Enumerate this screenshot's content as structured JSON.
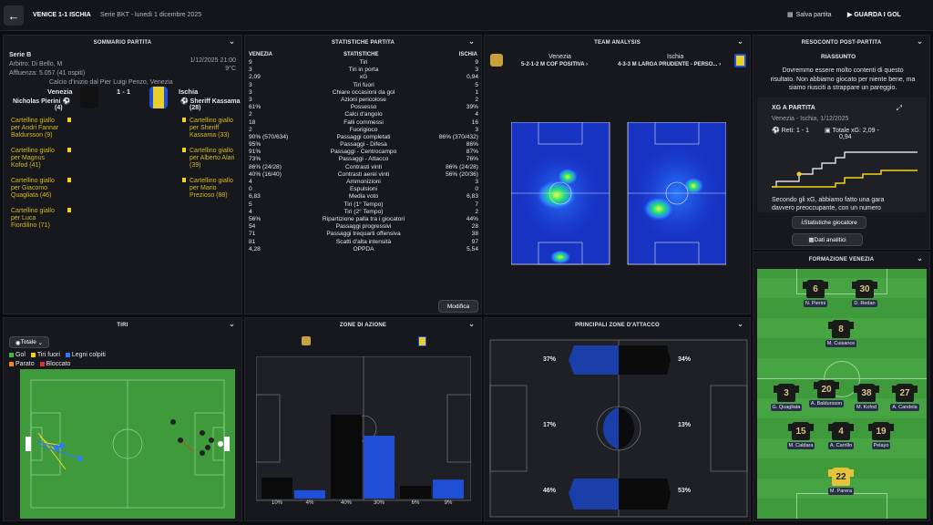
{
  "header": {
    "title": "VENICE 1-1 ISCHIA",
    "subtitle": "Serie BKT - lunedì 1 dicembre 2025",
    "save": "Salva partita",
    "watch": "GUARDA I GOL"
  },
  "summary": {
    "title": "SOMMARIO PARTITA",
    "league": "Serie B",
    "date": "1/12/2025 21:00",
    "referee": "Arbitro: Di Bello, M",
    "temp": "9°C",
    "attendance": "Affluenza: 5.057 (41 ospiti)",
    "kickoff": "Calcio d'inizio dal Pier Luigi Penzo, Venezia",
    "home": "Venezia",
    "away": "Ischia",
    "score": "1 - 1",
    "home_scorer": "Nicholas Pierini",
    "home_scorer_min": "(4)",
    "away_scorer": "Sheriff Kassama",
    "away_scorer_min": "(28)",
    "home_cards": [
      {
        "a": "Cartellino giallo",
        "b": "per Andri Fannar",
        "c": "Baldursson (9)"
      },
      {
        "a": "Cartellino giallo",
        "b": "per Magnus",
        "c": "Kofod (41)"
      },
      {
        "a": "Cartellino giallo",
        "b": "per Giacomo",
        "c": "Quagliata (46)"
      },
      {
        "a": "Cartellino giallo",
        "b": "per Luca",
        "c": "Fiordilino (71)"
      }
    ],
    "away_cards": [
      {
        "a": "Cartellino giallo",
        "b": "per Sheriff",
        "c": "Kassama (33)"
      },
      {
        "a": "Cartellino giallo",
        "b": "per Alberto Alari",
        "c": "(39)"
      },
      {
        "a": "Cartellino giallo",
        "b": "per Mario",
        "c": "Prezioso (88)"
      }
    ]
  },
  "stats": {
    "title": "STATISTICHE PARTITA",
    "h_home": "VENEZIA",
    "h_mid": "STATISTICHE",
    "h_away": "ISCHIA",
    "edit": "Modifica",
    "rows": [
      [
        "9",
        "Tiri",
        "9"
      ],
      [
        "3",
        "Tiri in porta",
        "3"
      ],
      [
        "2,09",
        "xG",
        "0,94"
      ],
      [
        "3",
        "Tiri fuori",
        "5"
      ],
      [
        "3",
        "Chiare occasioni da gol",
        "1"
      ],
      [
        "3",
        "Azioni pericolose",
        "2"
      ],
      [
        "61%",
        "Possesso",
        "39%"
      ],
      [
        "2",
        "Calci d'angolo",
        "4"
      ],
      [
        "18",
        "Falli commessi",
        "16"
      ],
      [
        "2",
        "Fuorigioco",
        "3"
      ],
      [
        "90% (570/634)",
        "Passaggi completati",
        "86% (370/432)"
      ],
      [
        "95%",
        "Passaggi - Difesa",
        "86%"
      ],
      [
        "91%",
        "Passaggi - Centrocampo",
        "87%"
      ],
      [
        "73%",
        "Passaggi - Attacco",
        "76%"
      ],
      [
        "86% (24/28)",
        "Contrasti vinti",
        "86% (24/28)"
      ],
      [
        "40% (16/40)",
        "Contrasti aerei vinti",
        "56% (20/36)"
      ],
      [
        "4",
        "Ammonizioni",
        "3"
      ],
      [
        "0",
        "Espulsioni",
        "0"
      ],
      [
        "6,83",
        "Media voto",
        "6,83"
      ],
      [
        "5",
        "Tiri (1° Tempo)",
        "7"
      ],
      [
        "4",
        "Tiri (2° Tempo)",
        "2"
      ],
      [
        "56%",
        "Ripartizione palla tra i giocatori",
        "44%"
      ],
      [
        "54",
        "Passaggi progressivi",
        "28"
      ],
      [
        "71",
        "Passaggi trequarti offensiva",
        "38"
      ],
      [
        "81",
        "Scatti d'alta intensità",
        "97"
      ],
      [
        "4,28",
        "OPPDA",
        "5,54"
      ]
    ]
  },
  "team": {
    "title": "TEAM ANALYSIS",
    "home": "Venezia",
    "away": "Ischia",
    "home_form": "5-2-1-2 M COF POSITIVA ›",
    "away_form": "4-3-3 M LARGA PRUDENTE - PERSO... ›"
  },
  "report": {
    "title": "RESOCONTO POST-PARTITA",
    "sub": "RIASSUNTO",
    "text": [
      "Dovremmo essere molto contenti di questo",
      "risultato. Non abbiamo giocato per niente bene, ma",
      "siamo riusciti a strappare un pareggio."
    ],
    "xg_title": "XG A PARTITA",
    "xg_sub": "Venezia - Ischia, 1/12/2025",
    "goals": "Reti: 1 - 1",
    "xg_tot": "Totale xG: 2,09 -",
    "xg_tot2": "0,94",
    "xg_text": [
      "Secondo gli xG, abbiamo fatto una gara",
      "davvero preoccupante, con un numero"
    ],
    "btn1": "Statistiche giocatore",
    "btn2": "Dati analitici"
  },
  "lineup": {
    "title": "FORMAZIONE VENEZIA",
    "players": [
      {
        "n": "6",
        "name": "N. Pierini"
      },
      {
        "n": "30",
        "name": "D. Redan"
      },
      {
        "n": "8",
        "name": "M. Cuisance"
      },
      {
        "n": "3",
        "name": "G. Quagliata"
      },
      {
        "n": "20",
        "name": "A. Baldursson"
      },
      {
        "n": "38",
        "name": "M. Kofod"
      },
      {
        "n": "27",
        "name": "A. Candela"
      },
      {
        "n": "15",
        "name": "M. Caldara"
      },
      {
        "n": "4",
        "name": "A. Carrillo"
      },
      {
        "n": "19",
        "name": "Pelayo"
      },
      {
        "n": "22",
        "name": "M. Parera"
      }
    ]
  },
  "shots": {
    "title": "TIRI",
    "filter": "Totale",
    "legend": [
      "Gol",
      "Tiri fuori",
      "Legni colpiti",
      "Parato",
      "Bloccato"
    ]
  },
  "zones": {
    "title": "ZONE DI AZIONE",
    "labels": [
      "10%",
      "4%",
      "40%",
      "30%",
      "6%",
      "9%"
    ]
  },
  "attack": {
    "title": "PRINCIPALI ZONE D'ATTACCO",
    "labels": [
      "37%",
      "34%",
      "17%",
      "13%",
      "46%",
      "53%"
    ]
  },
  "colors": {
    "accent": "#f2d21a",
    "home": "#0a0a0a",
    "away": "#1f4fd6",
    "pitch": "#3f9a3c"
  }
}
